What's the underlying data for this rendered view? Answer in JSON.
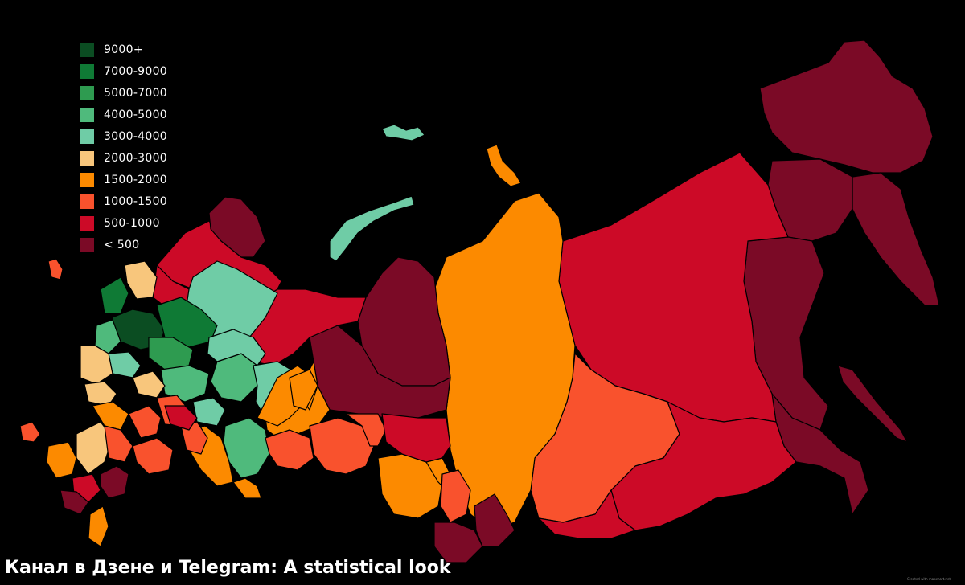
{
  "legend": {
    "items": [
      {
        "label": "9000+",
        "color": "#0b4d22"
      },
      {
        "label": "7000-9000",
        "color": "#0f7a35"
      },
      {
        "label": "5000-7000",
        "color": "#2e9b50"
      },
      {
        "label": "4000-5000",
        "color": "#4fba7c"
      },
      {
        "label": "3000-4000",
        "color": "#6fcca6"
      },
      {
        "label": "2000-3000",
        "color": "#f8c67c"
      },
      {
        "label": "1500-2000",
        "color": "#fc8a00"
      },
      {
        "label": "1000-1500",
        "color": "#f9522d"
      },
      {
        "label": "500-1000",
        "color": "#cc0a27"
      },
      {
        "label": "< 500",
        "color": "#7b0a26"
      }
    ]
  },
  "caption": "Канал в Дзене и Telegram: A statistical look",
  "credit": "Created with mapchart.net"
}
